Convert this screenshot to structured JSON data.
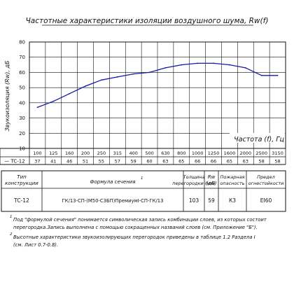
{
  "title": "Частотные характеристики изоляции воздушного шума, Rw(f)",
  "chart_data": {
    "type": "line",
    "ylabel": "Звукоизоляция (Rw), дБ",
    "xlabel": "Частота (f), Гц",
    "ylim": [
      10,
      80
    ],
    "yticks": [
      10,
      20,
      30,
      40,
      50,
      60,
      70,
      80
    ],
    "grid": true,
    "categories": [
      "100",
      "125",
      "160",
      "200",
      "250",
      "315",
      "400",
      "500",
      "630",
      "800",
      "1000",
      "1250",
      "1600",
      "2000",
      "2500",
      "3150"
    ],
    "series": [
      {
        "name": "TC-12",
        "values": [
          37,
          41,
          46,
          51,
          55,
          57,
          59,
          60,
          63,
          65,
          66,
          66,
          65,
          63,
          58,
          58
        ],
        "color": "#1a1aa6"
      }
    ]
  },
  "freq_table": {
    "row_label": "— TC-12",
    "values": [
      "37",
      "41",
      "46",
      "51",
      "55",
      "57",
      "59",
      "60",
      "63",
      "65",
      "66",
      "66",
      "65",
      "63",
      "58",
      "58"
    ]
  },
  "spec_table": {
    "headers": [
      "Тип конструкции",
      "Формула сечения",
      "Толщина перегородки (мм)",
      "Rw (дБ)",
      "Пожарная опасность",
      "Предел огнестойкости"
    ],
    "formula_footnote_mark": "1",
    "row": [
      "TC-12",
      "ГК/13-СП-(М50-СЗБП)ПремиумI-СП-ГК/13",
      "103",
      "59",
      "К3",
      "EI60"
    ]
  },
  "footnotes": [
    {
      "mark": "1",
      "lines": [
        "Под \"формулой сечения\" понимается символическая запись комбинации слоев, из которых состоит",
        "перегородка.Запись выполнена с помощью сокращенных названий слоев (см. Приложение \"Б\")."
      ]
    },
    {
      "mark": "2",
      "lines": [
        "Высотные характеристики звукоизолирующих перегородок приведены в таблице 1.2 Раздела I",
        "(см. Лист 0.7-0.8)."
      ]
    }
  ]
}
